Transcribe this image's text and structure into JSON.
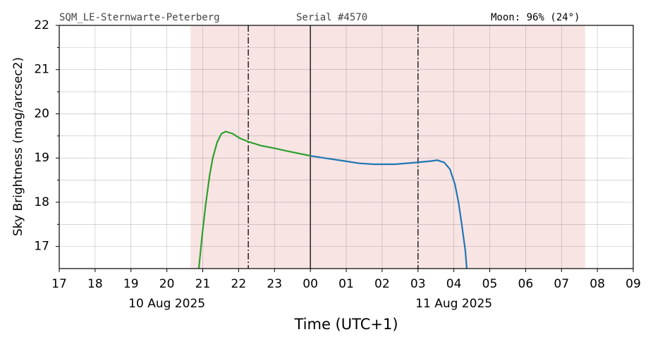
{
  "chart_data": {
    "type": "line",
    "header": {
      "station": "SQM_LE-Sternwarte-Peterberg",
      "serial": "Serial #4570",
      "moon": "Moon: 96% (24°)"
    },
    "ylabel": "Sky Brightness (mag/arcsec2)",
    "xlabel": "Time (UTC+1)",
    "xlim": [
      17,
      33
    ],
    "ylim": [
      16.5,
      22
    ],
    "xticks": [
      17,
      18,
      19,
      20,
      21,
      22,
      23,
      {
        "value": 24,
        "label": "00"
      },
      {
        "value": 25,
        "label": "01"
      },
      {
        "value": 26,
        "label": "02"
      },
      {
        "value": 27,
        "label": "03"
      },
      {
        "value": 28,
        "label": "04"
      },
      {
        "value": 29,
        "label": "05"
      },
      {
        "value": 30,
        "label": "06"
      },
      {
        "value": 31,
        "label": "07"
      },
      {
        "value": 32,
        "label": "08"
      },
      {
        "value": 33,
        "label": "09"
      }
    ],
    "date_labels": [
      {
        "value": 20,
        "label": "10 Aug 2025"
      },
      {
        "value": 28,
        "label": "11 Aug 2025"
      }
    ],
    "yticks": [
      17,
      18,
      19,
      20,
      21,
      22
    ],
    "yminorticks": [
      17.5,
      18.5,
      19.5,
      20.5,
      21.5
    ],
    "grid": true,
    "span": {
      "x": [
        20.66,
        31.66
      ],
      "color": "#f9e4e4"
    },
    "vlines": [
      {
        "x": 22.27,
        "style": "dashdot"
      },
      {
        "x": 24,
        "style": "solid"
      },
      {
        "x": 27.0,
        "style": "dashdot"
      }
    ],
    "series": [
      {
        "color": "#2ca02c",
        "x": [
          20.89,
          20.99,
          21.09,
          21.19,
          21.28,
          21.4,
          21.52,
          21.64,
          21.84,
          22.03,
          22.27,
          22.62,
          23.01,
          23.4,
          24.0
        ],
        "values": [
          16.5,
          17.3,
          18.0,
          18.6,
          19.0,
          19.35,
          19.55,
          19.6,
          19.55,
          19.45,
          19.37,
          19.28,
          19.22,
          19.15,
          19.05
        ]
      },
      {
        "color": "#1f77b4",
        "x": [
          24.0,
          24.39,
          24.98,
          25.37,
          25.77,
          26.36,
          26.95,
          27.34,
          27.54,
          27.73,
          27.89,
          28.03,
          28.13,
          28.22,
          28.32,
          28.36
        ],
        "values": [
          19.05,
          19.0,
          18.93,
          18.88,
          18.86,
          18.86,
          18.9,
          18.93,
          18.95,
          18.9,
          18.75,
          18.4,
          18.0,
          17.5,
          16.9,
          16.5
        ]
      }
    ]
  }
}
